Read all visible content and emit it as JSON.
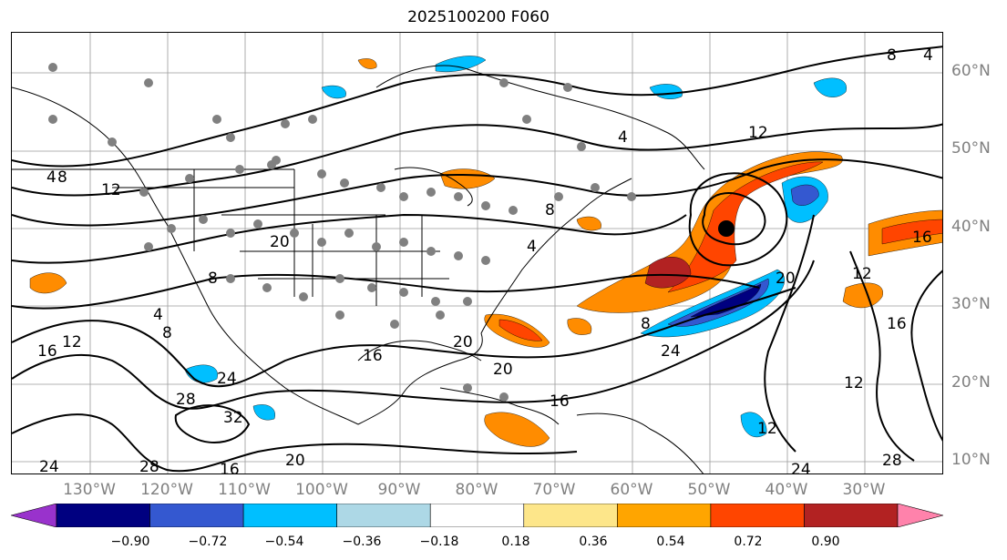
{
  "title": "2025100200 F060",
  "lat_labels": [
    "60°N",
    "50°N",
    "40°N",
    "30°N",
    "20°N",
    "10°N"
  ],
  "lon_labels": [
    "130°W",
    "120°W",
    "110°W",
    "100°W",
    "90°W",
    "80°W",
    "70°W",
    "60°W",
    "50°W",
    "40°W",
    "30°W"
  ],
  "colorbar": {
    "colors": [
      "#9932cc",
      "#000080",
      "#3458d0",
      "#00bfff",
      "#add8e6",
      "#ffffff",
      "#fde68a",
      "#ffa500",
      "#ff4500",
      "#b22222",
      "#ff82ab"
    ],
    "ticks": [
      "−0.90",
      "−0.72",
      "−0.54",
      "−0.36",
      "−0.18",
      "0.18",
      "0.36",
      "0.54",
      "0.72",
      "0.90"
    ]
  },
  "contour_labels": [
    "4",
    "8",
    "12",
    "16",
    "20",
    "24",
    "28",
    "32",
    "8",
    "4",
    "12",
    "16",
    "20",
    "24",
    "28",
    "16",
    "24",
    "20",
    "16",
    "12",
    "8",
    "4",
    "8",
    "12",
    "16",
    "20",
    "24",
    "28",
    "4",
    "8",
    "12",
    "16",
    "20",
    "4",
    "8",
    "12"
  ],
  "storm_marker": {
    "lon": -48,
    "lat": 40
  }
}
